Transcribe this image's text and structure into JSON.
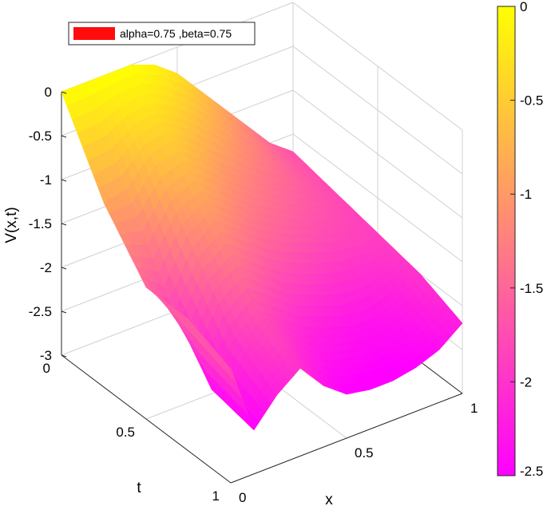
{
  "chart_data": {
    "type": "surface",
    "legend": [
      "alpha=0.75 ,beta=0.75"
    ],
    "legend_placement": "top-left",
    "xlabel": "x",
    "ylabel": "t",
    "zlabel": "V(x,t)",
    "xlim": [
      0,
      1
    ],
    "ylim": [
      0,
      1
    ],
    "zlim": [
      -3,
      0
    ],
    "xticks": [
      "0",
      "0.5",
      "1"
    ],
    "yticks": [
      "0",
      "0.5",
      "1"
    ],
    "zticks": [
      "-3",
      "-2.5",
      "-2",
      "-1.5",
      "-1",
      "-0.5",
      "0"
    ],
    "grid": true,
    "colormap": "spring",
    "colormap_colors": [
      "#ff00ff",
      "#ffff00"
    ],
    "colorbar_range": [
      -2.5,
      0
    ],
    "colorbar_ticks": [
      "0",
      "-0.5",
      "-1",
      "-1.5",
      "-2",
      "-2.5"
    ],
    "series": [
      {
        "x": [
          0,
          0.1,
          0.2,
          0.3,
          0.4,
          0.5,
          0.6,
          0.7,
          0.8,
          0.9,
          1
        ],
        "t": [
          0,
          0.25,
          0.5,
          0.75,
          1
        ],
        "z": [
          [
            0,
            0,
            0,
            0,
            -0.1,
            -0.3,
            -0.6,
            -0.9,
            -1.2,
            -1.5,
            -1.7
          ],
          [
            -0.9,
            -0.85,
            -0.55,
            -0.5,
            -0.7,
            -0.95,
            -1.15,
            -1.35,
            -1.5,
            -1.65,
            -1.8
          ],
          [
            -1.5,
            -1.75,
            -1.25,
            -1.05,
            -1.25,
            -1.45,
            -1.6,
            -1.7,
            -1.8,
            -1.85,
            -1.9
          ],
          [
            -1.5,
            -2.4,
            -1.9,
            -1.7,
            -1.9,
            -2.1,
            -2.2,
            -2.3,
            -2.3,
            -2.2,
            -2.0
          ],
          [
            -1.7,
            -2.5,
            -2.2,
            -2.0,
            -2.3,
            -2.5,
            -2.55,
            -2.55,
            -2.5,
            -2.4,
            -2.2
          ]
        ]
      }
    ]
  }
}
